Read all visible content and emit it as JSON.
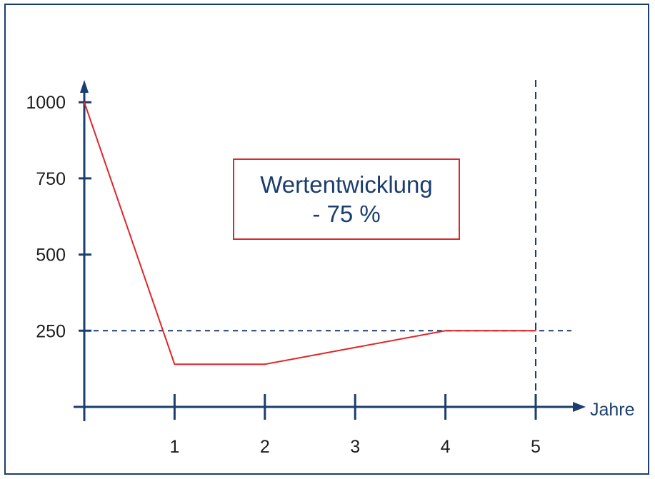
{
  "chart_data": {
    "type": "line",
    "xlabel": "Jahre",
    "ylabel": "",
    "title": "",
    "x_ticks": [
      1,
      2,
      3,
      4,
      5
    ],
    "y_ticks": [
      250,
      500,
      750,
      1000
    ],
    "series": [
      {
        "x": [
          0,
          1,
          2,
          3,
          4,
          5
        ],
        "y": [
          1000,
          140,
          140,
          195,
          250,
          250
        ]
      }
    ],
    "reference_lines": [
      {
        "orientation": "horizontal",
        "value": 250,
        "style": "dashed"
      },
      {
        "orientation": "vertical",
        "value": 5,
        "style": "dashed"
      }
    ],
    "annotation": {
      "line1": "Wertentwicklung",
      "line2": "- 75 %"
    },
    "xlim": [
      0,
      5.6
    ],
    "ylim": [
      0,
      1150
    ],
    "grid": false,
    "colors": {
      "line": "#e0262a",
      "axis": "#1a3e6e",
      "annotation_border": "#e0262a",
      "annotation_text": "#1a3e6e"
    }
  }
}
